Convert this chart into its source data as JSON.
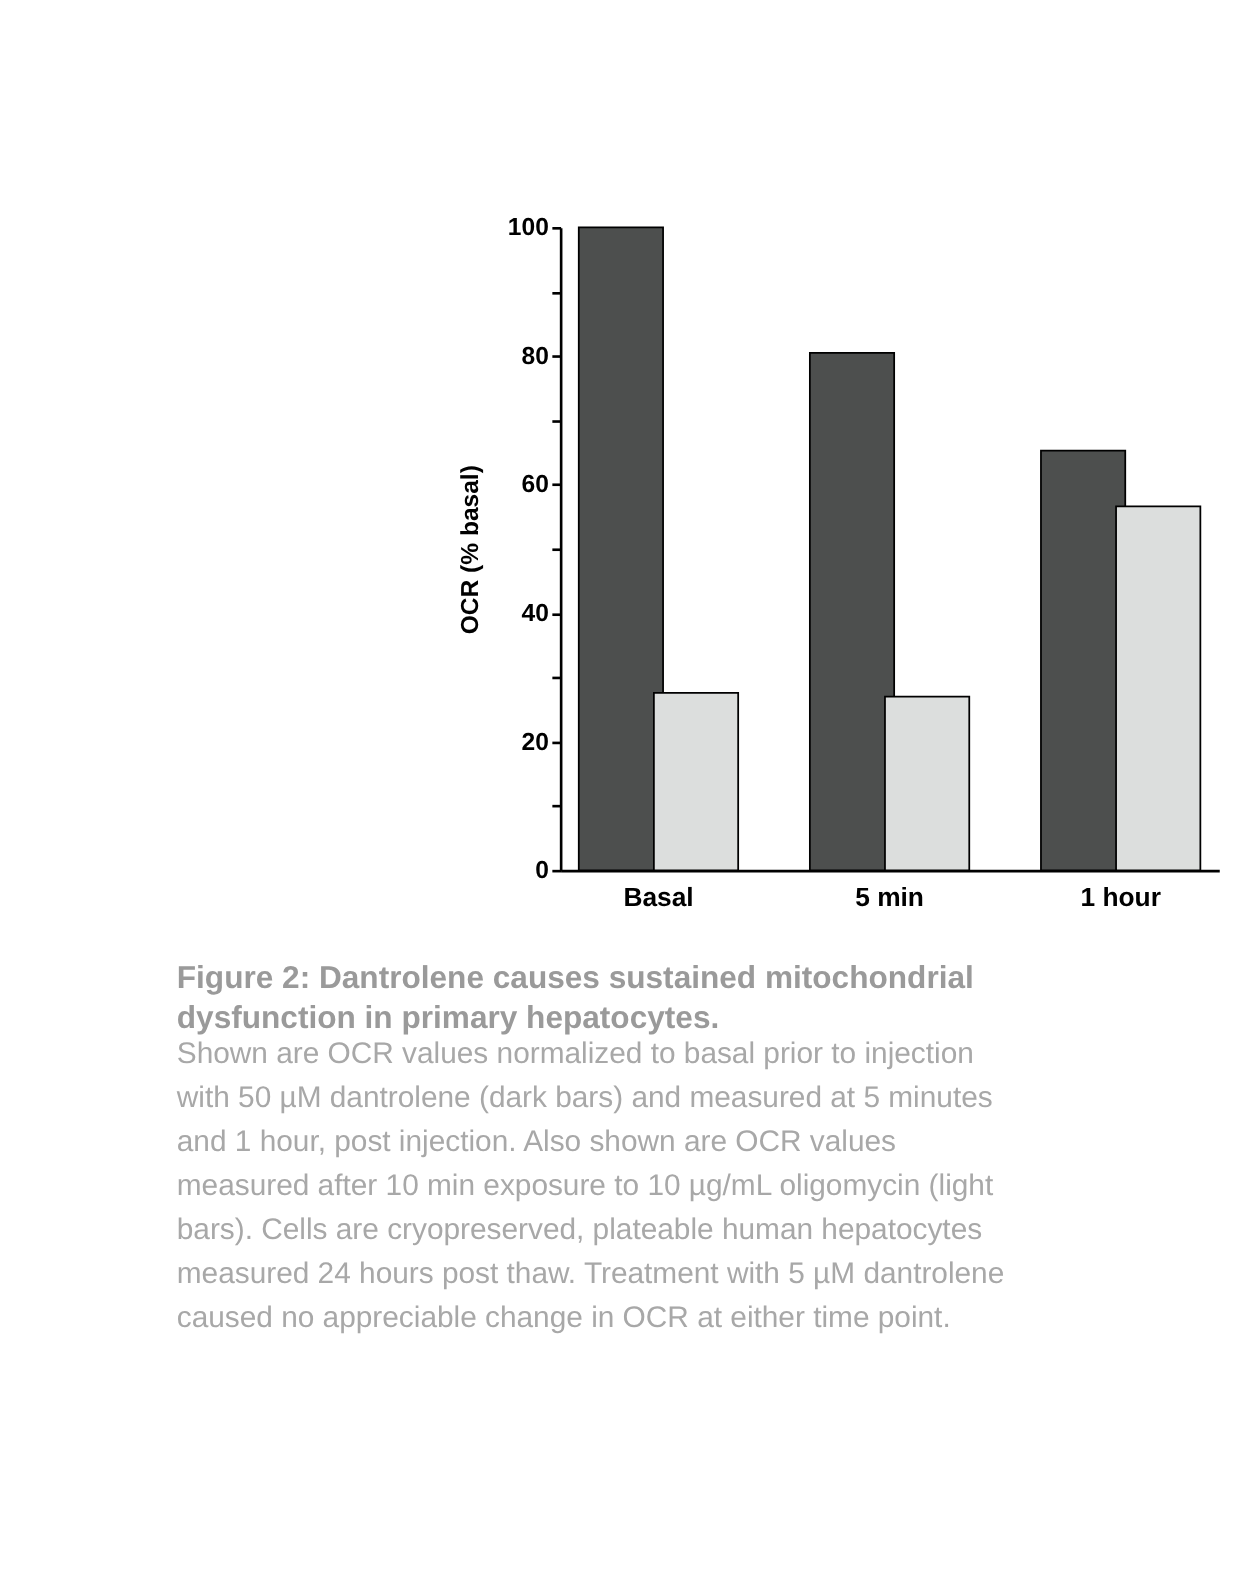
{
  "chart_data": {
    "type": "bar",
    "ylabel": "OCR (% basal)",
    "categories": [
      "Basal",
      "5 min",
      "1 hour"
    ],
    "series": [
      {
        "color": "#4d4f4e",
        "values": [
          100,
          80.5,
          65.3
        ]
      },
      {
        "color": "#dcdedd",
        "values": [
          27.6,
          27,
          56.6
        ]
      }
    ],
    "ylim": [
      0,
      100
    ],
    "yticks": [
      0,
      {
        "value": 10,
        "label": null
      },
      20,
      {
        "value": 30,
        "label": null
      },
      40,
      {
        "value": 50,
        "label": null
      },
      60,
      {
        "value": 70,
        "label": null
      },
      80,
      {
        "value": 90,
        "label": null
      },
      100
    ],
    "grid": false,
    "legend": false,
    "annotations": [
      "Figure 2: Dantrolene causes sustained mitochondrial dysfunction in primary hepatocytes.",
      "Shown are OCR values normalized to basal prior to injection with 50 µM dantrolene (dark bars) and measured at 5 minutes and 1 hour, post injection.  Also shown are OCR values measured after 10 min exposure to 10 µg/mL oligomycin (light bars).  Cells are cryopreserved, plateable human hepatocytes measured 24 hours post thaw.  Treatment with 5 µM dantrolene caused no appreciable change in OCR at either time point."
    ]
  }
}
